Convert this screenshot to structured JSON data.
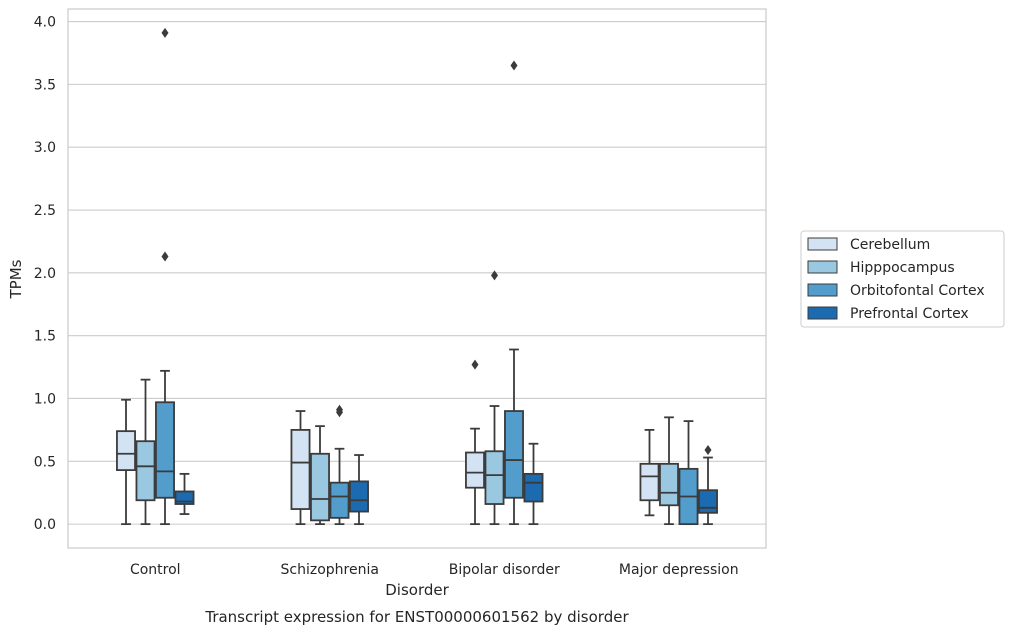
{
  "chart_data": {
    "type": "box",
    "title": "Transcript expression for ENST00000601562 by disorder",
    "xlabel": "Disorder",
    "ylabel": "TPMs",
    "ylim": [
      -0.19,
      4.1
    ],
    "yticks": [
      "0.0",
      "0.5",
      "1.0",
      "1.5",
      "2.0",
      "2.5",
      "3.0",
      "3.5",
      "4.0"
    ],
    "grid": "horizontal",
    "legend_position": "right",
    "categories": [
      "Control",
      "Schizophrenia",
      "Bipolar disorder",
      "Major depression"
    ],
    "series": [
      {
        "name": "Cerebellum",
        "color": "#d3e3f3",
        "boxes": [
          {
            "whislo": 0.0,
            "q1": 0.43,
            "med": 0.56,
            "q3": 0.74,
            "whishi": 0.99,
            "fliers": []
          },
          {
            "whislo": 0.0,
            "q1": 0.12,
            "med": 0.49,
            "q3": 0.75,
            "whishi": 0.9,
            "fliers": []
          },
          {
            "whislo": 0.0,
            "q1": 0.29,
            "med": 0.41,
            "q3": 0.57,
            "whishi": 0.76,
            "fliers": [
              1.27
            ]
          },
          {
            "whislo": 0.07,
            "q1": 0.19,
            "med": 0.38,
            "q3": 0.48,
            "whishi": 0.75,
            "fliers": []
          }
        ]
      },
      {
        "name": "Hipppocampus",
        "color": "#9ac8e0",
        "boxes": [
          {
            "whislo": 0.0,
            "q1": 0.19,
            "med": 0.46,
            "q3": 0.66,
            "whishi": 1.15,
            "fliers": []
          },
          {
            "whislo": 0.0,
            "q1": 0.03,
            "med": 0.2,
            "q3": 0.56,
            "whishi": 0.78,
            "fliers": []
          },
          {
            "whislo": 0.0,
            "q1": 0.16,
            "med": 0.39,
            "q3": 0.58,
            "whishi": 0.94,
            "fliers": [
              1.98
            ]
          },
          {
            "whislo": 0.0,
            "q1": 0.15,
            "med": 0.25,
            "q3": 0.48,
            "whishi": 0.85,
            "fliers": []
          }
        ]
      },
      {
        "name": "Orbitofontal Cortex",
        "color": "#529dcc",
        "boxes": [
          {
            "whislo": 0.0,
            "q1": 0.21,
            "med": 0.42,
            "q3": 0.97,
            "whishi": 1.22,
            "fliers": [
              2.13,
              3.91
            ]
          },
          {
            "whislo": 0.0,
            "q1": 0.05,
            "med": 0.22,
            "q3": 0.33,
            "whishi": 0.6,
            "fliers": [
              0.89,
              0.91
            ]
          },
          {
            "whislo": 0.0,
            "q1": 0.21,
            "med": 0.51,
            "q3": 0.9,
            "whishi": 1.39,
            "fliers": [
              3.65
            ]
          },
          {
            "whislo": 0.0,
            "q1": 0.0,
            "med": 0.22,
            "q3": 0.44,
            "whishi": 0.82,
            "fliers": []
          }
        ]
      },
      {
        "name": "Prefrontal Cortex",
        "color": "#1c6aaf",
        "boxes": [
          {
            "whislo": 0.08,
            "q1": 0.16,
            "med": 0.18,
            "q3": 0.26,
            "whishi": 0.4,
            "fliers": []
          },
          {
            "whislo": 0.0,
            "q1": 0.1,
            "med": 0.19,
            "q3": 0.34,
            "whishi": 0.55,
            "fliers": []
          },
          {
            "whislo": 0.0,
            "q1": 0.18,
            "med": 0.33,
            "q3": 0.4,
            "whishi": 0.64,
            "fliers": []
          },
          {
            "whislo": 0.0,
            "q1": 0.09,
            "med": 0.13,
            "q3": 0.27,
            "whishi": 0.53,
            "fliers": [
              0.59
            ]
          }
        ]
      }
    ]
  }
}
